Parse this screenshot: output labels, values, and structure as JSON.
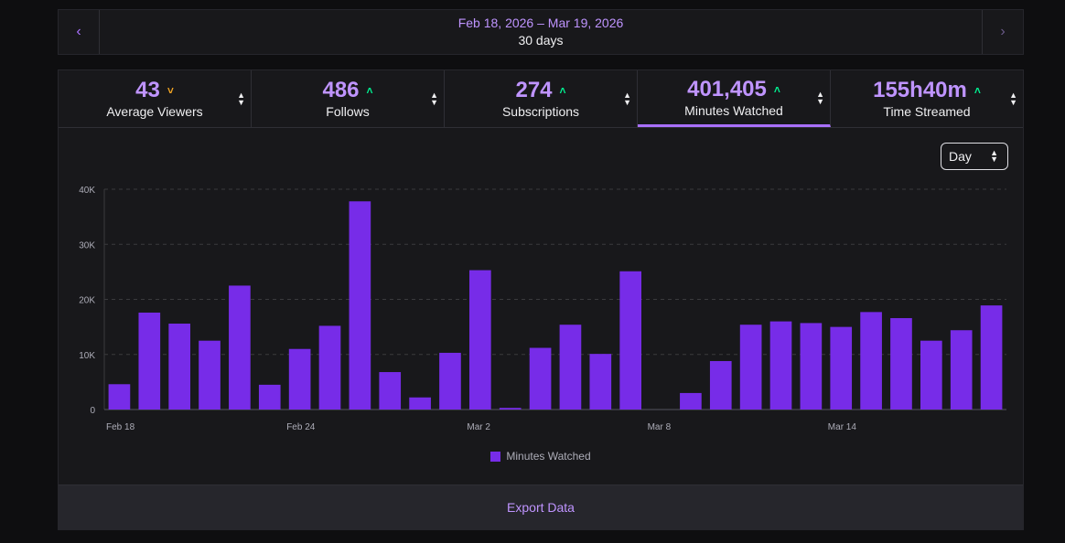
{
  "date_nav": {
    "prev_icon": "‹",
    "next_icon": "›",
    "range": "Feb 18, 2026 – Mar 19, 2026",
    "days": "30 days"
  },
  "tabs": [
    {
      "value": "43",
      "label": "Average Viewers",
      "trend": "˅",
      "trend_dir": "down"
    },
    {
      "value": "486",
      "label": "Follows",
      "trend": "˄",
      "trend_dir": "up"
    },
    {
      "value": "274",
      "label": "Subscriptions",
      "trend": "˄",
      "trend_dir": "up"
    },
    {
      "value": "401,405",
      "label": "Minutes Watched",
      "trend": "˄",
      "trend_dir": "up"
    },
    {
      "value": "155h40m",
      "label": "Time Streamed",
      "trend": "˄",
      "trend_dir": "up"
    }
  ],
  "active_tab": "Minutes Watched",
  "granularity": {
    "selected": "Day"
  },
  "export_label": "Export Data",
  "colors": {
    "bar": "#772ce8",
    "accent": "#bf94ff",
    "up": "#00f593",
    "down": "#f5a623"
  },
  "chart_data": {
    "type": "bar",
    "series_name": "Minutes Watched",
    "categories": [
      "Feb 18",
      "Feb 19",
      "Feb 20",
      "Feb 21",
      "Feb 22",
      "Feb 23",
      "Feb 24",
      "Feb 25",
      "Feb 26",
      "Feb 27",
      "Feb 28",
      "Mar 1",
      "Mar 2",
      "Mar 3",
      "Mar 4",
      "Mar 5",
      "Mar 6",
      "Mar 7",
      "Mar 8",
      "Mar 9",
      "Mar 10",
      "Mar 11",
      "Mar 12",
      "Mar 13",
      "Mar 14",
      "Mar 15",
      "Mar 16",
      "Mar 17",
      "Mar 18",
      "Mar 19"
    ],
    "values": [
      4600,
      17600,
      15600,
      12500,
      22500,
      4500,
      11000,
      15200,
      37800,
      6800,
      2200,
      10300,
      25300,
      300,
      11200,
      15400,
      10100,
      25100,
      0,
      3000,
      8800,
      15400,
      16000,
      15700,
      15000,
      17700,
      16600,
      12500,
      14400,
      18900
    ],
    "x_tick_labels": [
      "Feb 18",
      "Feb 24",
      "Mar 2",
      "Mar 8",
      "Mar 14"
    ],
    "y_tick_labels": [
      "0",
      "10K",
      "20K",
      "30K",
      "40K"
    ],
    "y_ticks": [
      0,
      10000,
      20000,
      30000,
      40000
    ],
    "ylim": [
      0,
      40000
    ],
    "grid": true,
    "legend": "bottom-center"
  }
}
